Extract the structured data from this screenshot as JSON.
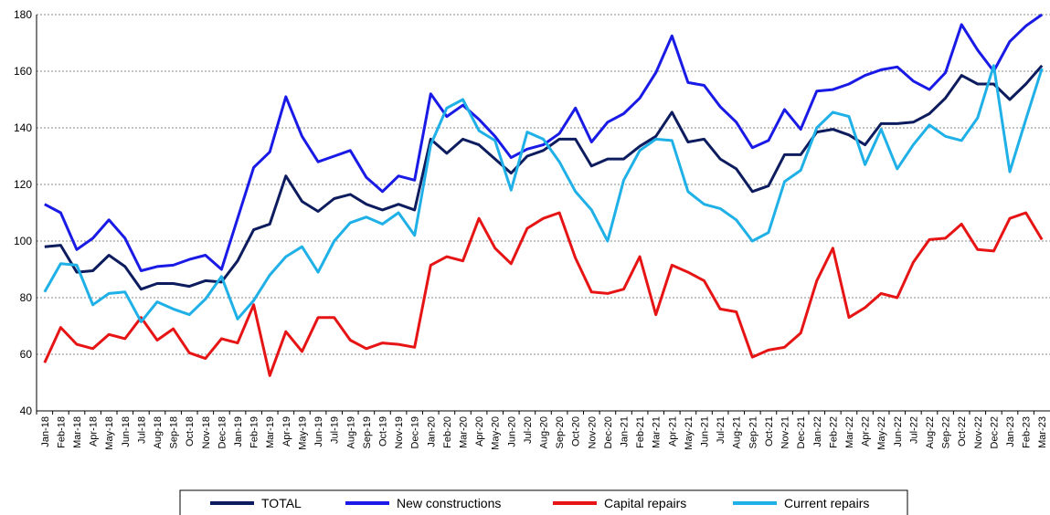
{
  "chart_data": {
    "type": "line",
    "categories": [
      "Jan-18",
      "Feb-18",
      "Mar-18",
      "Apr-18",
      "May-18",
      "Jun-18",
      "Jul-18",
      "Aug-18",
      "Sep-18",
      "Oct-18",
      "Nov-18",
      "Dec-18",
      "Jan-19",
      "Feb-19",
      "Mar-19",
      "Apr-19",
      "May-19",
      "Jun-19",
      "Jul-19",
      "Aug-19",
      "Sep-19",
      "Oct-19",
      "Nov-19",
      "Dec-19",
      "Jan-20",
      "Feb-20",
      "Mar-20",
      "Apr-20",
      "May-20",
      "Jun-20",
      "Jul-20",
      "Aug-20",
      "Sep-20",
      "Oct-20",
      "Nov-20",
      "Dec-20",
      "Jan-21",
      "Feb-21",
      "Mar-21",
      "Apr-21",
      "May-21",
      "Jun-21",
      "Jul-21",
      "Aug-21",
      "Sep-21",
      "Oct-21",
      "Nov-21",
      "Dec-21",
      "Jan-22",
      "Feb-22",
      "Mar-22",
      "Apr-22",
      "May-22",
      "Jun-22",
      "Jul-22",
      "Aug-22",
      "Sep-22",
      "Oct-22",
      "Nov-22",
      "Dec-22",
      "Jan-23",
      "Feb-23",
      "Mar-23"
    ],
    "series": [
      {
        "name": "TOTAL",
        "color": "#0d1c5e",
        "values": [
          98,
          98.5,
          89,
          89.5,
          95,
          91,
          83,
          85,
          85,
          84,
          86,
          85.5,
          93,
          104,
          106,
          123,
          114,
          110.5,
          115,
          116.5,
          113,
          111,
          113,
          111,
          136,
          131,
          136,
          134,
          129,
          124,
          130,
          132,
          136,
          136,
          126.5,
          129,
          129,
          133.5,
          137,
          145.5,
          135,
          136,
          129,
          125.5,
          117.5,
          119.5,
          130.5,
          130.5,
          138.5,
          139.5,
          137.5,
          134,
          141.5,
          141.5,
          142,
          145,
          150.5,
          158.5,
          155.5,
          155.5,
          150,
          155.5,
          162
        ]
      },
      {
        "name": "New constructions",
        "color": "#1a1ae6",
        "values": [
          113,
          110,
          97,
          101,
          107.5,
          101,
          89.5,
          91,
          91.5,
          93.5,
          95,
          90,
          108,
          126,
          131.5,
          151,
          137,
          128,
          130,
          132,
          122.5,
          117.5,
          123,
          121.5,
          152,
          144,
          148,
          143,
          137,
          129.5,
          132.5,
          134,
          138,
          147,
          135,
          142,
          145,
          150.5,
          159.5,
          172.5,
          156,
          155,
          147.5,
          142,
          133,
          135.5,
          146.5,
          139.5,
          153,
          153.5,
          155.5,
          158.5,
          160.5,
          161.5,
          156.5,
          153.5,
          159.5,
          176.5,
          167.5,
          160,
          170.5,
          176,
          180
        ]
      },
      {
        "name": "Capital repairs",
        "color": "#e61414",
        "values": [
          57,
          69.5,
          63.5,
          62,
          67,
          65.5,
          73,
          65,
          69,
          60.5,
          58.5,
          65.5,
          64,
          77.5,
          52.5,
          68,
          61,
          73,
          73,
          65,
          62,
          64,
          63.5,
          62.5,
          91.5,
          94.5,
          93,
          108,
          97.5,
          92,
          104.5,
          108,
          110,
          94,
          82,
          81.5,
          83,
          94.5,
          74,
          91.5,
          89,
          86,
          76,
          75,
          59,
          61.5,
          62.5,
          67.5,
          86,
          97.5,
          73,
          76.5,
          81.5,
          80,
          92.5,
          100.5,
          101,
          106,
          97,
          96.5,
          108,
          110,
          100.5
        ]
      },
      {
        "name": "Current repairs",
        "color": "#1eb0e6",
        "values": [
          82,
          92,
          91.5,
          77.5,
          81.5,
          82,
          71.5,
          78.5,
          76,
          74,
          79.5,
          87.5,
          72.5,
          79,
          88,
          94.5,
          98,
          89,
          100,
          106.5,
          108.5,
          106,
          110,
          102,
          134,
          147,
          150,
          139,
          135.5,
          118,
          138.5,
          136,
          128,
          117.5,
          111,
          100,
          121.5,
          132,
          136,
          135.5,
          117.5,
          113,
          111.5,
          107.5,
          100,
          103,
          121,
          125,
          140,
          145.5,
          144,
          127,
          139.5,
          125.5,
          134,
          141,
          137,
          135.5,
          143.5,
          162,
          124.5,
          143,
          161
        ]
      }
    ],
    "ylim": [
      40,
      180
    ],
    "yticks": [
      40,
      60,
      80,
      100,
      120,
      140,
      160,
      180
    ],
    "grid": true,
    "legend": "bottom"
  }
}
